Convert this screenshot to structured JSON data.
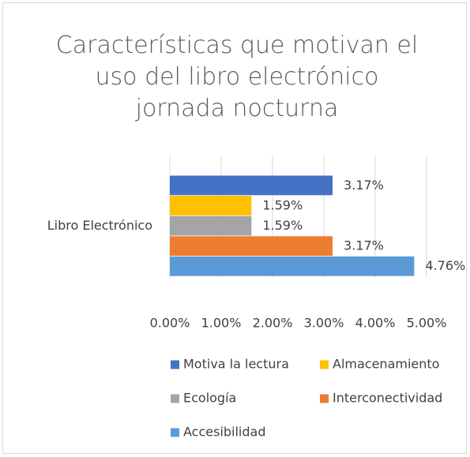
{
  "chart_data": {
    "type": "bar",
    "orientation": "horizontal",
    "title": "Características que motivan el uso del libro electrónico jornada nocturna",
    "categories": [
      "Libro Electrónico"
    ],
    "series": [
      {
        "name": "Motiva la lectura",
        "color": "#4472c4",
        "values": [
          3.17
        ],
        "value_labels": [
          "3.17%"
        ]
      },
      {
        "name": "Almacenamiento",
        "color": "#ffc000",
        "values": [
          1.59
        ],
        "value_labels": [
          "1.59%"
        ]
      },
      {
        "name": "Ecología",
        "color": "#a5a5a5",
        "values": [
          1.59
        ],
        "value_labels": [
          "1.59%"
        ]
      },
      {
        "name": "Interconectividad",
        "color": "#ed7d31",
        "values": [
          3.17
        ],
        "value_labels": [
          "3.17%"
        ]
      },
      {
        "name": "Accesibilidad",
        "color": "#5b9bd5",
        "values": [
          4.76
        ],
        "value_labels": [
          "4.76%"
        ]
      }
    ],
    "xlim": [
      0,
      5
    ],
    "xticks": [
      {
        "value": 0,
        "label": "0.00%"
      },
      {
        "value": 1,
        "label": "1.00%"
      },
      {
        "value": 2,
        "label": "2.00%"
      },
      {
        "value": 3,
        "label": "3.00%"
      },
      {
        "value": 4,
        "label": "4.00%"
      },
      {
        "value": 5,
        "label": "5.00%"
      }
    ],
    "grid": true,
    "legend": "bottom"
  }
}
